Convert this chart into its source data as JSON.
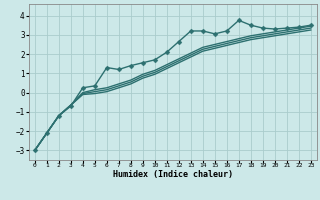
{
  "title": "",
  "xlabel": "Humidex (Indice chaleur)",
  "bg_color": "#cce8e8",
  "grid_color": "#aacccc",
  "line_color": "#2d7070",
  "xlim": [
    -0.5,
    23.5
  ],
  "ylim": [
    -3.5,
    4.6
  ],
  "yticks": [
    -3,
    -2,
    -1,
    0,
    1,
    2,
    3,
    4
  ],
  "xticks": [
    0,
    1,
    2,
    3,
    4,
    5,
    6,
    7,
    8,
    9,
    10,
    11,
    12,
    13,
    14,
    15,
    16,
    17,
    18,
    19,
    20,
    21,
    22,
    23
  ],
  "series": [
    {
      "x": [
        0,
        1,
        2,
        3,
        4,
        5,
        6,
        7,
        8,
        9,
        10,
        11,
        12,
        13,
        14,
        15,
        16,
        17,
        18,
        19,
        20,
        21,
        22,
        23
      ],
      "y": [
        -3.0,
        -2.1,
        -1.2,
        -0.7,
        0.25,
        0.35,
        1.3,
        1.2,
        1.4,
        1.55,
        1.7,
        2.1,
        2.65,
        3.2,
        3.2,
        3.05,
        3.2,
        3.75,
        3.5,
        3.35,
        3.3,
        3.35,
        3.4,
        3.5
      ],
      "marker": "D",
      "markersize": 2.5,
      "linewidth": 1.0
    },
    {
      "x": [
        0,
        1,
        2,
        3,
        4,
        5,
        6,
        7,
        8,
        9,
        10,
        11,
        12,
        13,
        14,
        15,
        16,
        17,
        18,
        19,
        20,
        21,
        22,
        23
      ],
      "y": [
        -3.0,
        -2.1,
        -1.2,
        -0.65,
        0.0,
        0.15,
        0.25,
        0.45,
        0.65,
        0.95,
        1.15,
        1.45,
        1.75,
        2.05,
        2.35,
        2.5,
        2.65,
        2.8,
        2.95,
        3.05,
        3.15,
        3.25,
        3.35,
        3.45
      ],
      "marker": null,
      "markersize": 0,
      "linewidth": 1.0
    },
    {
      "x": [
        0,
        1,
        2,
        3,
        4,
        5,
        6,
        7,
        8,
        9,
        10,
        11,
        12,
        13,
        14,
        15,
        16,
        17,
        18,
        19,
        20,
        21,
        22,
        23
      ],
      "y": [
        -3.0,
        -2.1,
        -1.2,
        -0.65,
        -0.05,
        0.05,
        0.15,
        0.35,
        0.55,
        0.85,
        1.05,
        1.35,
        1.65,
        1.95,
        2.25,
        2.4,
        2.55,
        2.7,
        2.85,
        2.95,
        3.05,
        3.15,
        3.25,
        3.35
      ],
      "marker": null,
      "markersize": 0,
      "linewidth": 1.0
    },
    {
      "x": [
        0,
        1,
        2,
        3,
        4,
        5,
        6,
        7,
        8,
        9,
        10,
        11,
        12,
        13,
        14,
        15,
        16,
        17,
        18,
        19,
        20,
        21,
        22,
        23
      ],
      "y": [
        -3.0,
        -2.1,
        -1.2,
        -0.65,
        -0.1,
        -0.05,
        0.05,
        0.25,
        0.45,
        0.75,
        0.95,
        1.25,
        1.55,
        1.85,
        2.15,
        2.3,
        2.45,
        2.6,
        2.75,
        2.85,
        2.95,
        3.05,
        3.15,
        3.25
      ],
      "marker": null,
      "markersize": 0,
      "linewidth": 1.0
    }
  ]
}
